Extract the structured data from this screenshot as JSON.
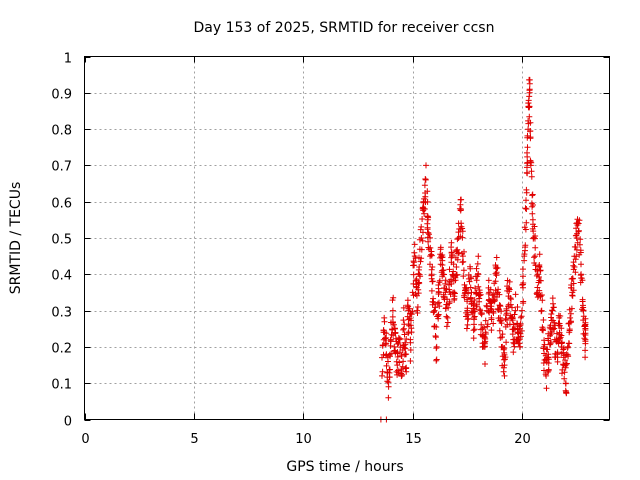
{
  "chart_data": {
    "type": "scatter",
    "title": "Day 153 of 2025, SRMTID for receiver ccsn",
    "xlabel": "GPS time / hours",
    "ylabel": "SRMTID / TECUs",
    "xlim": [
      0,
      24
    ],
    "ylim": [
      0,
      1
    ],
    "xticks": [
      0,
      5,
      10,
      15,
      20
    ],
    "yticks": [
      0,
      0.1,
      0.2,
      0.3,
      0.4,
      0.5,
      0.6,
      0.7,
      0.8,
      0.9,
      1
    ],
    "grid": true,
    "marker": "plus",
    "color": "#e00000",
    "series": [
      {
        "name": "SRMTID",
        "anchors": [
          [
            13.55,
            0.0
          ],
          [
            13.8,
            0.0
          ],
          [
            13.6,
            0.12
          ],
          [
            13.7,
            0.28
          ],
          [
            13.8,
            0.18
          ],
          [
            13.9,
            0.09
          ],
          [
            14.0,
            0.22
          ],
          [
            14.1,
            0.3
          ],
          [
            14.2,
            0.19
          ],
          [
            14.3,
            0.15
          ],
          [
            14.4,
            0.22
          ],
          [
            14.5,
            0.12
          ],
          [
            14.6,
            0.25
          ],
          [
            14.7,
            0.18
          ],
          [
            14.8,
            0.3
          ],
          [
            14.9,
            0.22
          ],
          [
            15.0,
            0.35
          ],
          [
            15.1,
            0.45
          ],
          [
            15.2,
            0.3
          ],
          [
            15.3,
            0.42
          ],
          [
            15.4,
            0.5
          ],
          [
            15.5,
            0.58
          ],
          [
            15.6,
            0.66
          ],
          [
            15.7,
            0.55
          ],
          [
            15.8,
            0.45
          ],
          [
            15.9,
            0.38
          ],
          [
            16.0,
            0.3
          ],
          [
            16.1,
            0.2
          ],
          [
            16.2,
            0.35
          ],
          [
            16.3,
            0.45
          ],
          [
            16.4,
            0.4
          ],
          [
            16.5,
            0.35
          ],
          [
            16.6,
            0.28
          ],
          [
            16.7,
            0.38
          ],
          [
            16.8,
            0.45
          ],
          [
            16.9,
            0.35
          ],
          [
            17.0,
            0.42
          ],
          [
            17.1,
            0.5
          ],
          [
            17.2,
            0.58
          ],
          [
            17.3,
            0.45
          ],
          [
            17.4,
            0.35
          ],
          [
            17.5,
            0.3
          ],
          [
            17.6,
            0.38
          ],
          [
            17.7,
            0.32
          ],
          [
            17.8,
            0.28
          ],
          [
            17.9,
            0.35
          ],
          [
            18.0,
            0.4
          ],
          [
            18.1,
            0.3
          ],
          [
            18.2,
            0.25
          ],
          [
            18.3,
            0.2
          ],
          [
            18.4,
            0.3
          ],
          [
            18.5,
            0.35
          ],
          [
            18.6,
            0.28
          ],
          [
            18.7,
            0.33
          ],
          [
            18.8,
            0.42
          ],
          [
            18.9,
            0.35
          ],
          [
            19.0,
            0.28
          ],
          [
            19.1,
            0.2
          ],
          [
            19.2,
            0.15
          ],
          [
            19.3,
            0.3
          ],
          [
            19.4,
            0.36
          ],
          [
            19.5,
            0.28
          ],
          [
            19.6,
            0.22
          ],
          [
            19.7,
            0.3
          ],
          [
            19.8,
            0.25
          ],
          [
            19.9,
            0.2
          ],
          [
            20.0,
            0.3
          ],
          [
            20.1,
            0.45
          ],
          [
            20.2,
            0.58
          ],
          [
            20.25,
            0.75
          ],
          [
            20.3,
            0.86
          ],
          [
            20.35,
            0.91
          ],
          [
            20.4,
            0.7
          ],
          [
            20.5,
            0.55
          ],
          [
            20.6,
            0.45
          ],
          [
            20.7,
            0.35
          ],
          [
            20.8,
            0.42
          ],
          [
            20.9,
            0.3
          ],
          [
            21.0,
            0.2
          ],
          [
            21.1,
            0.12
          ],
          [
            21.2,
            0.18
          ],
          [
            21.3,
            0.25
          ],
          [
            21.4,
            0.3
          ],
          [
            21.5,
            0.22
          ],
          [
            21.6,
            0.18
          ],
          [
            21.7,
            0.28
          ],
          [
            21.8,
            0.2
          ],
          [
            21.9,
            0.15
          ],
          [
            22.0,
            0.1
          ],
          [
            22.1,
            0.2
          ],
          [
            22.2,
            0.28
          ],
          [
            22.3,
            0.35
          ],
          [
            22.4,
            0.42
          ],
          [
            22.5,
            0.5
          ],
          [
            22.6,
            0.52
          ],
          [
            22.7,
            0.4
          ],
          [
            22.8,
            0.3
          ],
          [
            22.9,
            0.22
          ]
        ]
      }
    ]
  }
}
